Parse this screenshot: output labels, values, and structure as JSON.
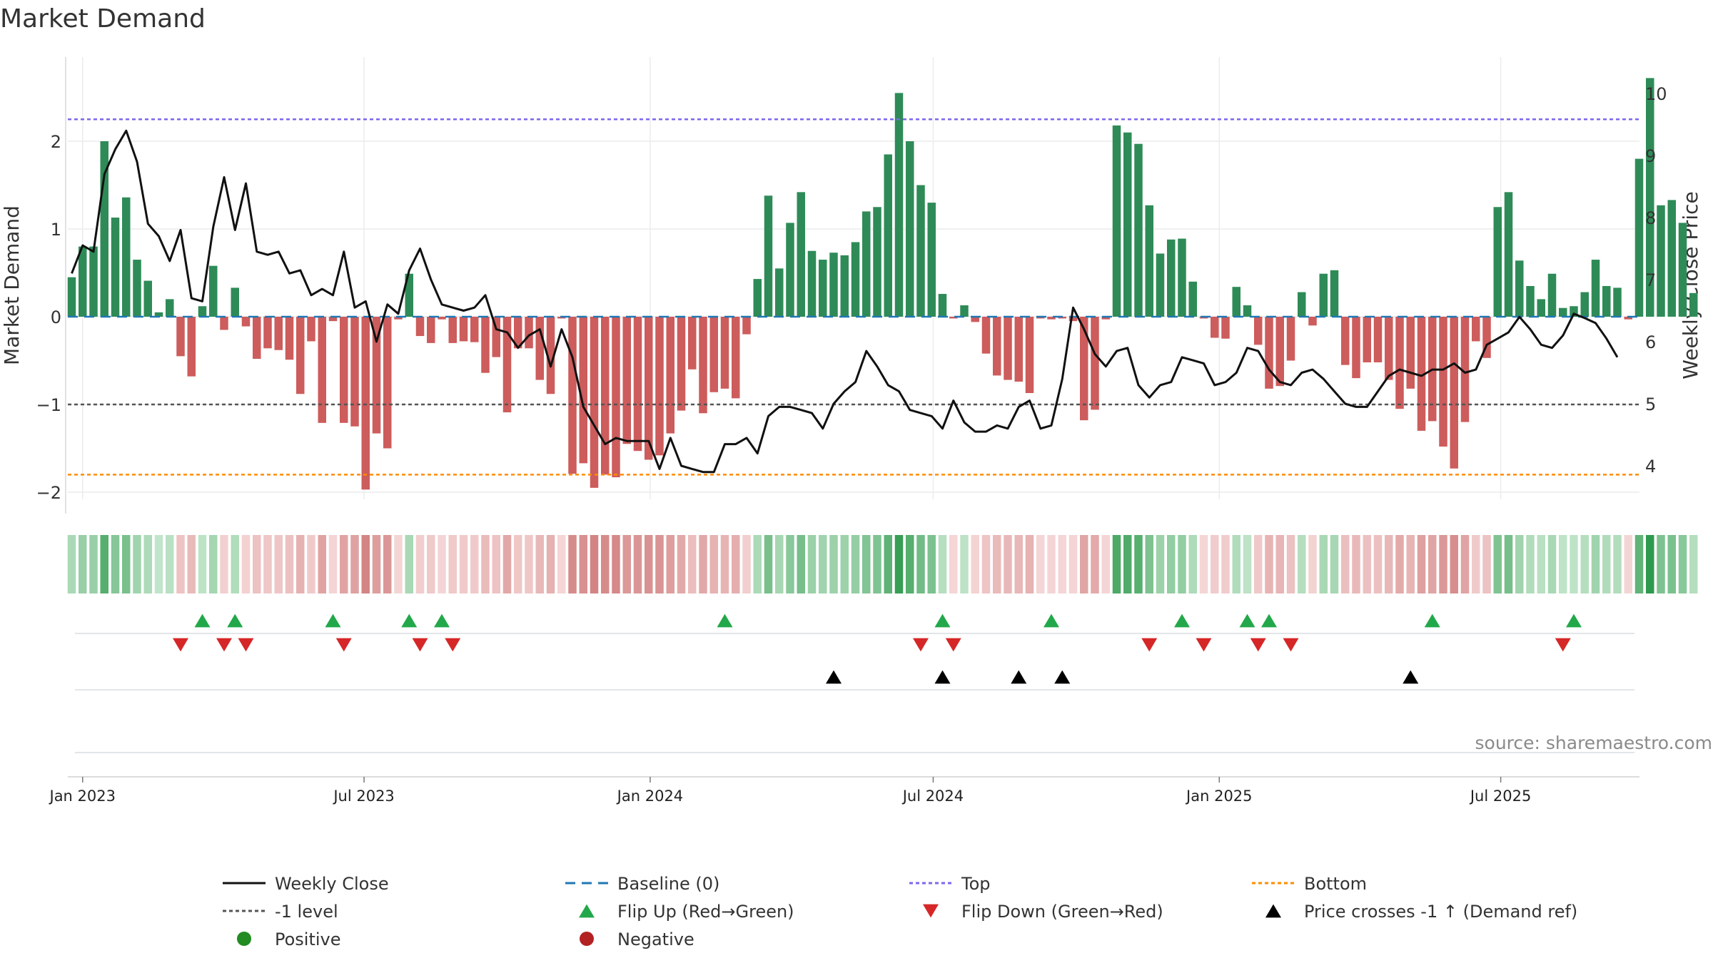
{
  "chart_data": {
    "type": "bar",
    "title": "Market Demand",
    "ylabel": "Market Demand",
    "y2label": "Weekly Close Price",
    "ylim": [
      -2.2,
      2.9
    ],
    "y2lim": [
      3.6,
      10.6
    ],
    "yticks": [
      -2,
      -1,
      0,
      1,
      2
    ],
    "y2ticks": [
      4,
      5,
      6,
      7,
      8,
      9,
      10
    ],
    "x_start": "2022-12-25",
    "week_days": 7,
    "xticks": [
      {
        "label": "Jan 2023",
        "date": "2023-01-01"
      },
      {
        "label": "Jul 2023",
        "date": "2023-07-01"
      },
      {
        "label": "Jan 2024",
        "date": "2024-01-01"
      },
      {
        "label": "Jul 2024",
        "date": "2024-07-01"
      },
      {
        "label": "Jan 2025",
        "date": "2025-01-01"
      },
      {
        "label": "Jul 2025",
        "date": "2025-07-01"
      }
    ],
    "reference_lines": {
      "top": 2.25,
      "bottom": -1.8,
      "minus_one": -1,
      "baseline": 0
    },
    "demand": [
      0.45,
      0.8,
      0.8,
      2.0,
      1.13,
      1.36,
      0.65,
      0.41,
      0.05,
      0.2,
      -0.45,
      -0.68,
      0.12,
      0.58,
      -0.15,
      0.33,
      -0.11,
      -0.48,
      -0.36,
      -0.38,
      -0.49,
      -0.88,
      -0.28,
      -1.21,
      -0.05,
      -1.21,
      -1.25,
      -1.97,
      -1.33,
      -1.5,
      -0.03,
      0.49,
      -0.22,
      -0.3,
      -0.03,
      -0.3,
      -0.28,
      -0.29,
      -0.64,
      -0.46,
      -1.09,
      -0.36,
      -0.36,
      -0.72,
      -0.88,
      -0.02,
      -1.79,
      -1.67,
      -1.95,
      -1.8,
      -1.83,
      -1.45,
      -1.53,
      -1.63,
      -1.58,
      -1.33,
      -1.07,
      -0.6,
      -1.1,
      -0.86,
      -0.82,
      -0.93,
      -0.2,
      0.43,
      1.38,
      0.55,
      1.07,
      1.42,
      0.75,
      0.65,
      0.73,
      0.7,
      0.85,
      1.2,
      1.25,
      1.85,
      2.55,
      2.0,
      1.5,
      1.3,
      0.26,
      -0.02,
      0.13,
      -0.06,
      -0.42,
      -0.67,
      -0.72,
      -0.74,
      -0.87,
      -0.02,
      -0.03,
      -0.02,
      -0.05,
      -1.18,
      -1.06,
      -0.03,
      2.18,
      2.1,
      1.97,
      1.27,
      0.72,
      0.88,
      0.89,
      0.4,
      -0.02,
      -0.24,
      -0.25,
      0.34,
      0.13,
      -0.32,
      -0.82,
      -0.79,
      -0.5,
      0.28,
      -0.1,
      0.49,
      0.53,
      -0.55,
      -0.7,
      -0.52,
      -0.52,
      -0.72,
      -1.05,
      -0.82,
      -1.3,
      -1.19,
      -1.48,
      -1.73,
      -1.2,
      -0.28,
      -0.47,
      1.25,
      1.42,
      0.64,
      0.35,
      0.2,
      0.49,
      0.1,
      0.12,
      0.28,
      0.65,
      0.35,
      0.33,
      -0.03,
      1.8,
      2.72,
      1.27,
      1.33,
      1.07,
      0.27
    ],
    "weekly_close": [
      7.1,
      7.55,
      7.45,
      8.7,
      9.1,
      9.4,
      8.9,
      7.9,
      7.7,
      7.3,
      7.8,
      6.7,
      6.65,
      7.85,
      8.65,
      7.8,
      8.55,
      7.45,
      7.4,
      7.45,
      7.1,
      7.15,
      6.75,
      6.85,
      6.75,
      7.45,
      6.55,
      6.65,
      6.0,
      6.6,
      6.45,
      7.15,
      7.5,
      7.0,
      6.6,
      6.55,
      6.5,
      6.55,
      6.75,
      6.2,
      6.15,
      5.9,
      6.1,
      6.2,
      5.6,
      6.2,
      5.75,
      4.95,
      4.65,
      4.35,
      4.45,
      4.4,
      4.4,
      4.4,
      3.95,
      4.45,
      4.0,
      3.95,
      3.9,
      3.9,
      4.35,
      4.35,
      4.45,
      4.2,
      4.8,
      4.95,
      4.95,
      4.9,
      4.85,
      4.6,
      5.0,
      5.2,
      5.35,
      5.85,
      5.6,
      5.3,
      5.2,
      4.9,
      4.85,
      4.8,
      4.6,
      5.05,
      4.7,
      4.55,
      4.55,
      4.65,
      4.6,
      4.95,
      5.05,
      4.6,
      4.65,
      5.4,
      6.55,
      6.2,
      5.8,
      5.6,
      5.85,
      5.9,
      5.3,
      5.1,
      5.3,
      5.35,
      5.75,
      5.7,
      5.65,
      5.3,
      5.35,
      5.5,
      5.9,
      5.85,
      5.55,
      5.35,
      5.3,
      5.5,
      5.55,
      5.4,
      5.2,
      5.0,
      4.95,
      4.95,
      5.2,
      5.45,
      5.55,
      5.5,
      5.45,
      5.55,
      5.55,
      5.65,
      5.5,
      5.55,
      5.95,
      6.05,
      6.15,
      6.4,
      6.2,
      5.95,
      5.9,
      6.1,
      6.45,
      6.38,
      6.3,
      6.05,
      5.75
    ],
    "flip_up_weeks": [
      12,
      15,
      24,
      31,
      34,
      60,
      80,
      90,
      102,
      108,
      110,
      125,
      138
    ],
    "flip_down_weeks": [
      10,
      14,
      16,
      25,
      32,
      35,
      78,
      81,
      99,
      104,
      109,
      112,
      137
    ],
    "price_cross_weeks": [
      70,
      80,
      87,
      91,
      123
    ],
    "heat_colors": {
      "pos_light": "#c4e6cc",
      "pos_dark": "#2f9a4e",
      "neg_light": "#f5d6d6",
      "neg_dark": "#c66565"
    },
    "bar_colors": {
      "positive": "#2e8b57",
      "negative": "#cd5c5c"
    },
    "line_colors": {
      "weekly_close": "#111111",
      "baseline": "#1f77b4",
      "top": "#7b68ee",
      "minus_one": "#555555",
      "bottom": "#ff8c00",
      "flip_up": "#22a84a",
      "flip_down": "#d62728",
      "price_cross": "#000000"
    },
    "source": "source: sharemaestro.com",
    "legend": [
      {
        "label": "Weekly Close",
        "kind": "line-solid",
        "color": "#111111"
      },
      {
        "label": "Baseline (0)",
        "kind": "line-dash",
        "color": "#1f77b4"
      },
      {
        "label": "Top",
        "kind": "line-dot",
        "color": "#7b68ee"
      },
      {
        "label": "Bottom",
        "kind": "line-dot",
        "color": "#ff8c00"
      },
      {
        "label": "-1 level",
        "kind": "line-dot",
        "color": "#555555"
      },
      {
        "label": "Flip Up (Red→Green)",
        "kind": "tri-up",
        "color": "#22a84a"
      },
      {
        "label": "Flip Down (Green→Red)",
        "kind": "tri-down",
        "color": "#d62728"
      },
      {
        "label": "Price crosses -1 ↑ (Demand ref)",
        "kind": "tri-up",
        "color": "#000000"
      },
      {
        "label": "Positive",
        "kind": "dot",
        "color": "#228b22"
      },
      {
        "label": "Negative",
        "kind": "dot",
        "color": "#b22222"
      }
    ]
  }
}
